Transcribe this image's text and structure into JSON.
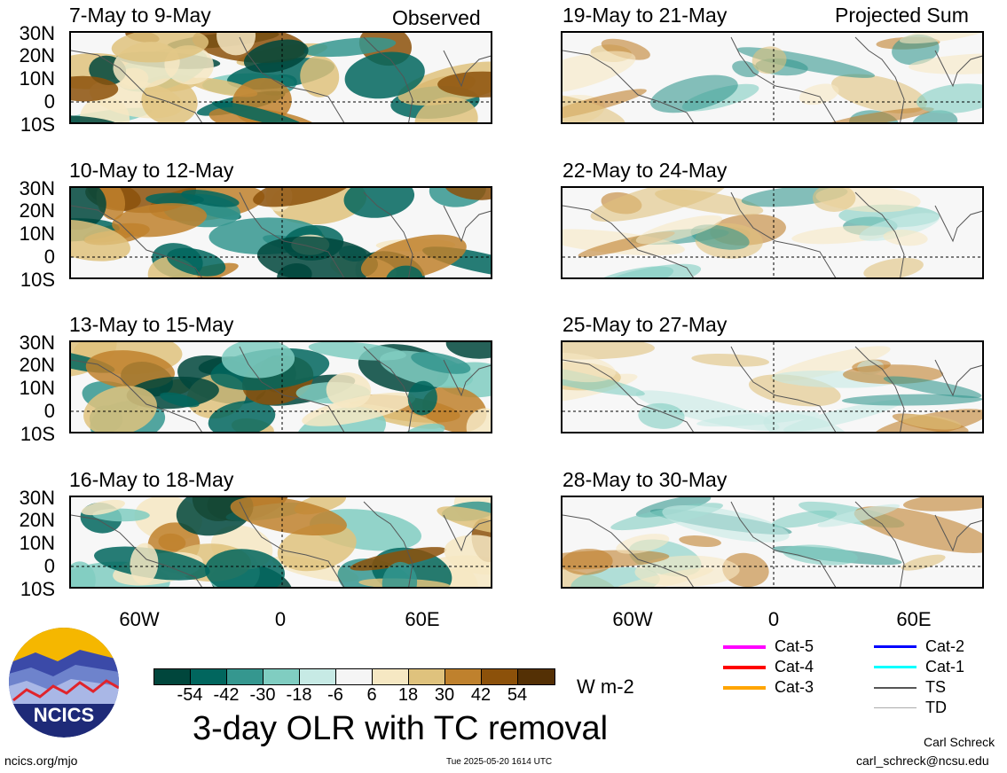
{
  "columns": {
    "left_label": "Observed",
    "right_label": "Projected Sum"
  },
  "panels_left": [
    {
      "title": "7-May to 9-May"
    },
    {
      "title": "10-May to 12-May"
    },
    {
      "title": "13-May to 15-May"
    },
    {
      "title": "16-May to 18-May"
    }
  ],
  "panels_right": [
    {
      "title": "19-May to 21-May"
    },
    {
      "title": "22-May to 24-May"
    },
    {
      "title": "25-May to 27-May"
    },
    {
      "title": "28-May to 30-May"
    }
  ],
  "lat_labels": [
    "30N",
    "20N",
    "10N",
    "0",
    "10S"
  ],
  "lon_labels": [
    "60W",
    "0",
    "60E"
  ],
  "colorbar": {
    "colors": [
      "#00463c",
      "#01665e",
      "#35978f",
      "#80cdc1",
      "#c7eae5",
      "#f5f5f5",
      "#f6e8c3",
      "#dfc27d",
      "#bf812d",
      "#8c510a",
      "#543005"
    ],
    "labels": [
      "-54",
      "-42",
      "-30",
      "-18",
      "-6",
      "6",
      "18",
      "30",
      "42",
      "54"
    ],
    "units": "W m-2"
  },
  "main_title": "3-day OLR with TC removal",
  "tc_legend": [
    {
      "label": "Cat-5",
      "color": "#ff00ff"
    },
    {
      "label": "Cat-4",
      "color": "#ff0000"
    },
    {
      "label": "Cat-3",
      "color": "#ffa500"
    },
    {
      "label": "Cat-2",
      "color": "#0000ff"
    },
    {
      "label": "Cat-1",
      "color": "#00ffff"
    },
    {
      "label": "TS",
      "color": "#555555"
    },
    {
      "label": "TD",
      "color": "#aaaaaa"
    }
  ],
  "logo": {
    "text": "NCICS"
  },
  "footer": {
    "site": "ncics.org/mjo",
    "timestamp": "Tue 2025-05-20 1614 UTC",
    "author": "Carl Schreck",
    "email": "carl_schreck@ncsu.edu"
  }
}
